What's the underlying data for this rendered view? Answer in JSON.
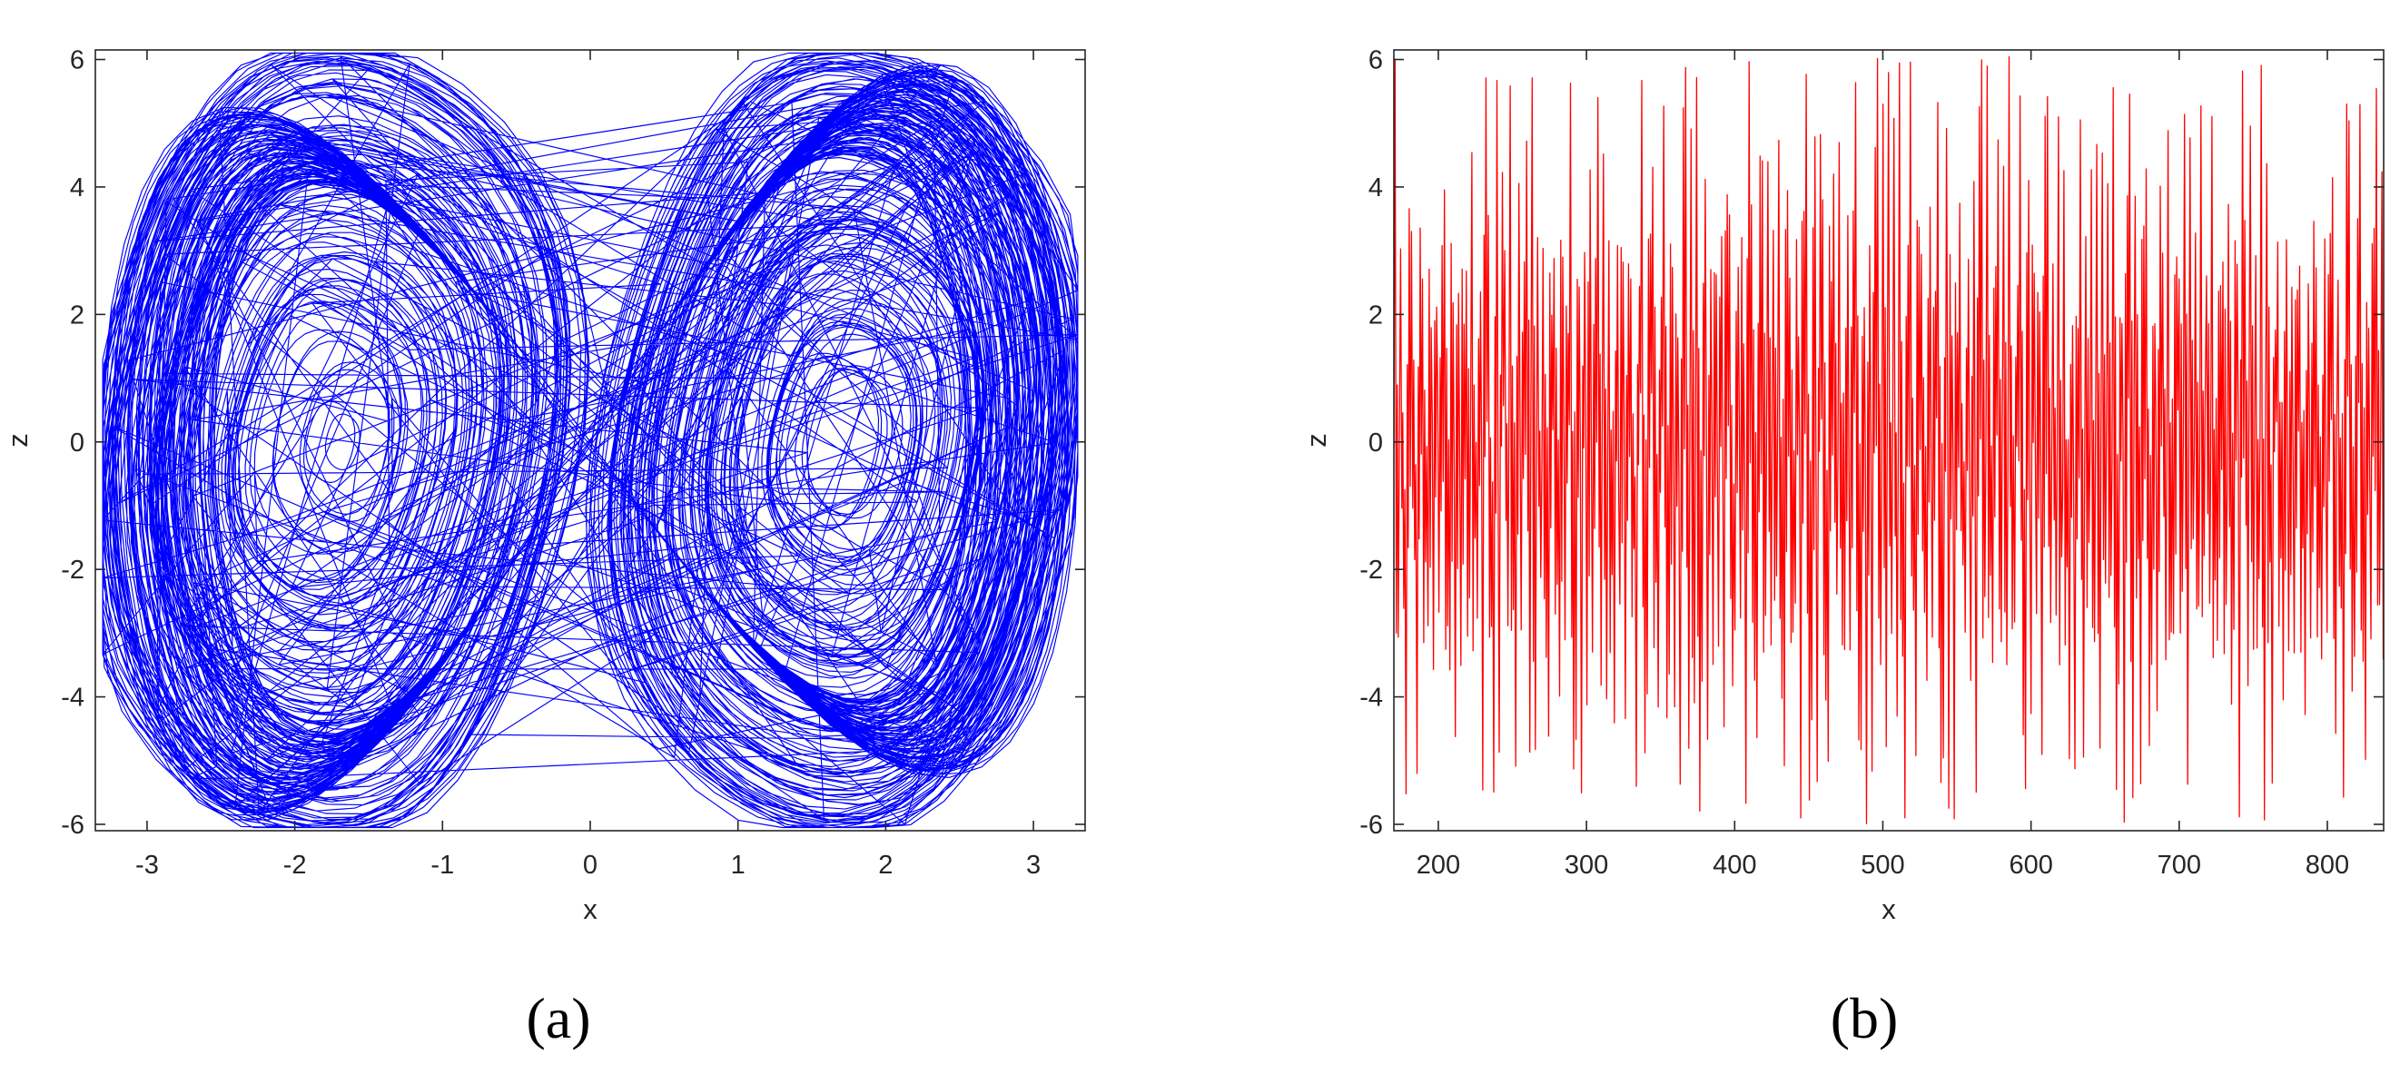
{
  "chart_data": [
    {
      "type": "line",
      "subtype": "phase-portrait",
      "panel_label": "(a)",
      "xlabel": "x",
      "ylabel": "z",
      "xlim": [
        -3.35,
        3.35
      ],
      "ylim": [
        -6.1,
        6.15
      ],
      "xticks": [
        -3,
        -2,
        -1,
        0,
        1,
        2,
        3
      ],
      "yticks": [
        -6,
        -4,
        -2,
        0,
        2,
        4,
        6
      ],
      "color": "#0000ff",
      "description_data": {
        "x_range": [
          -3.3,
          3.3
        ],
        "z_range": [
          -6.05,
          6.1
        ],
        "lobe_centers_x": [
          -1.75,
          1.7
        ],
        "shape": "two-lobe butterfly attractor"
      }
    },
    {
      "type": "line",
      "subtype": "time-series",
      "panel_label": "(b)",
      "xlabel": "x",
      "ylabel": "z",
      "xlim": [
        170,
        838
      ],
      "ylim": [
        -6.1,
        6.15
      ],
      "xticks": [
        200,
        300,
        400,
        500,
        600,
        700,
        800
      ],
      "yticks": [
        -6,
        -4,
        -2,
        0,
        2,
        4,
        6
      ],
      "color": "#ff0000",
      "description_data": {
        "z_range": [
          -6.05,
          6.15
        ],
        "approx_period": 3.7,
        "oscillation": "chaotic, near-periodic spikes between -6 and 6"
      }
    }
  ]
}
